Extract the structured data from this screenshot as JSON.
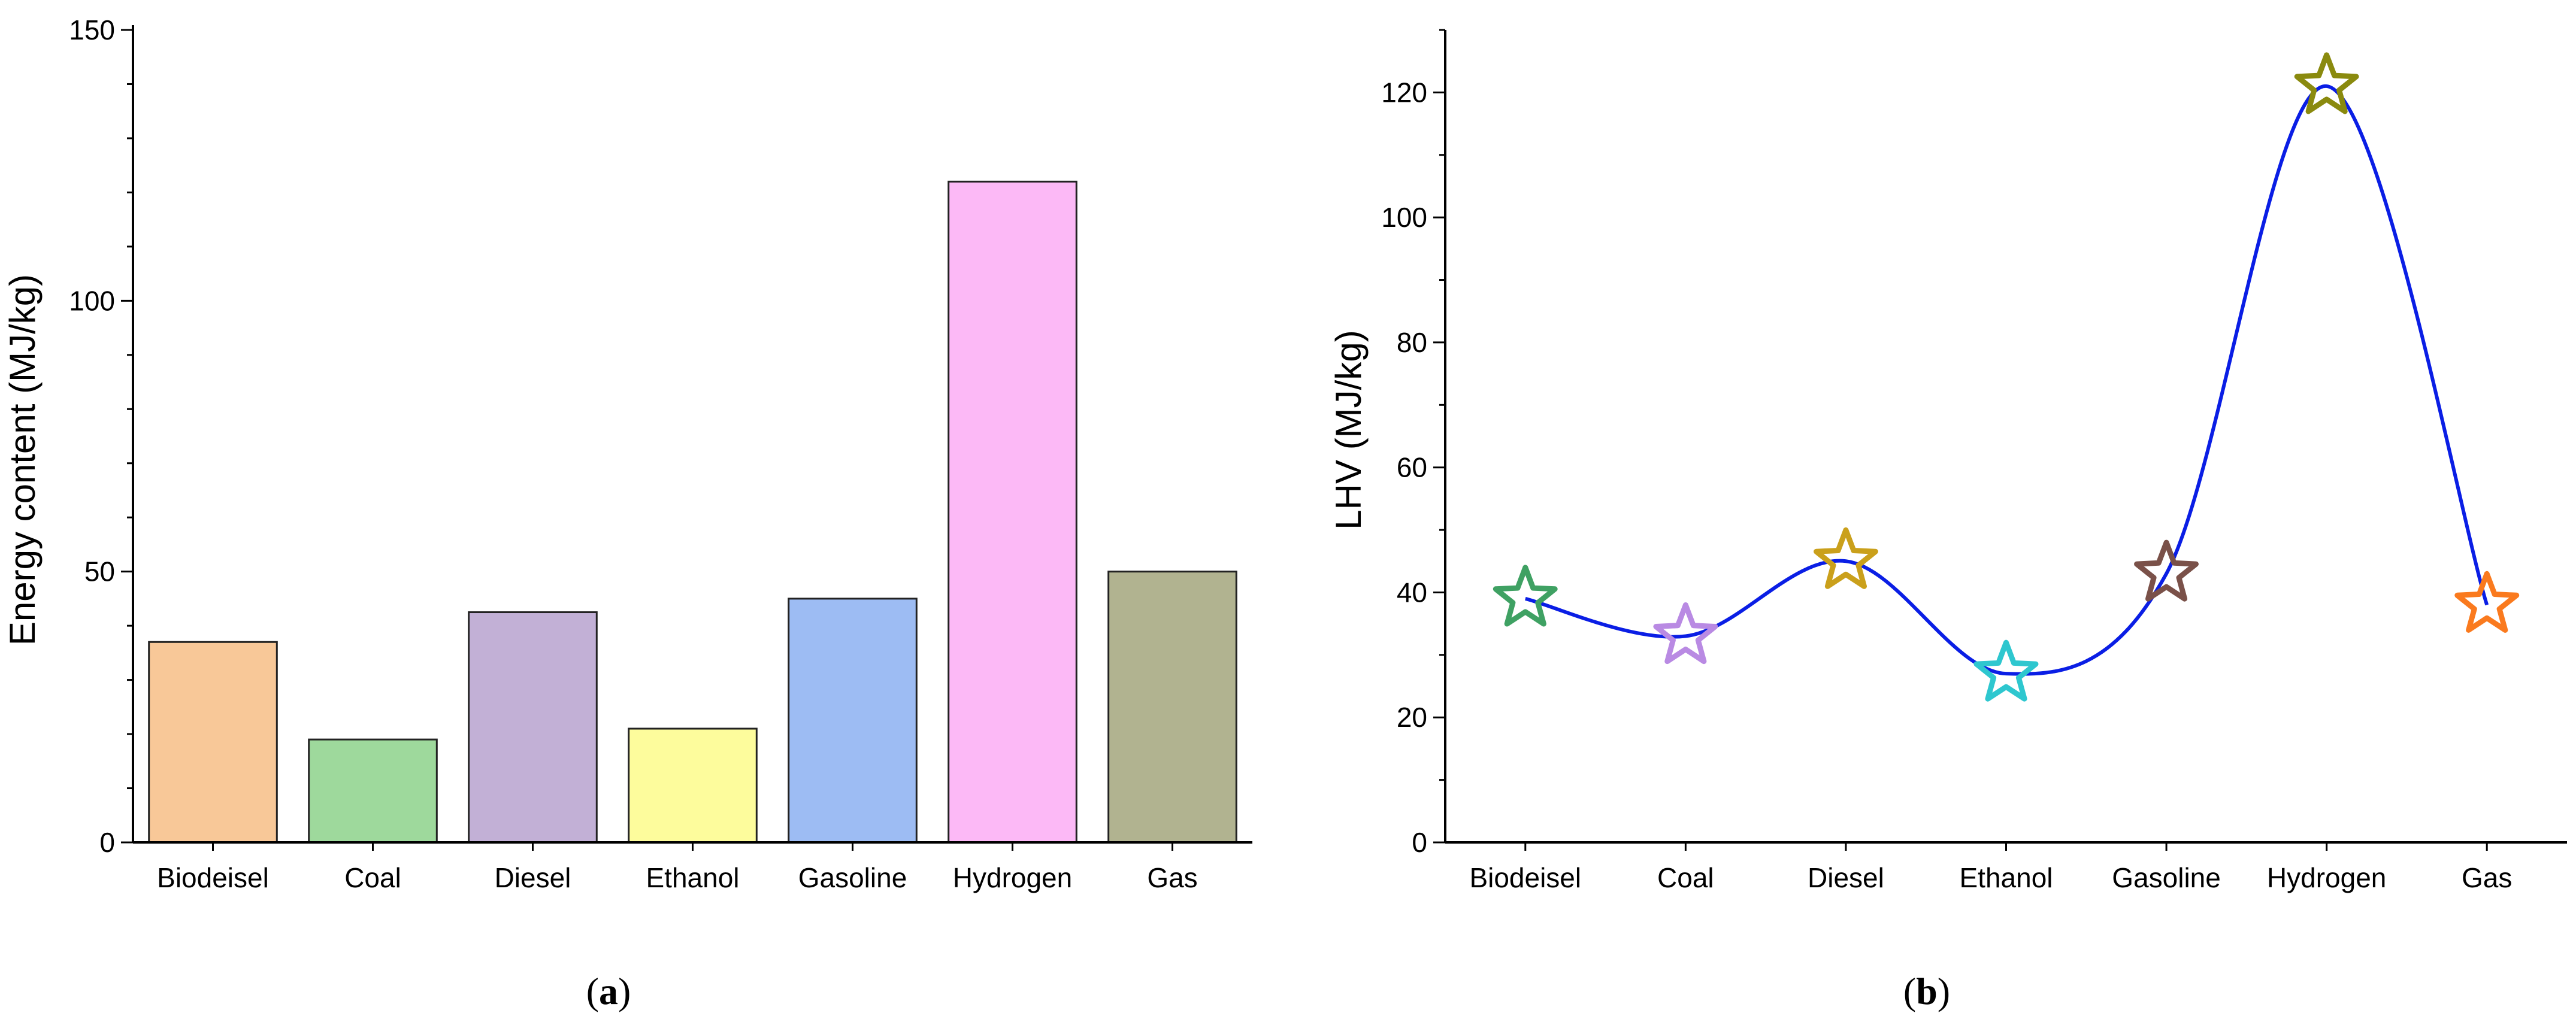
{
  "chart_data": [
    {
      "type": "bar",
      "categories": [
        "Biodeisel",
        "Coal",
        "Diesel",
        "Ethanol",
        "Gasoline",
        "Hydrogen",
        "Gas"
      ],
      "values": [
        37,
        19,
        42.5,
        21,
        45,
        122,
        50
      ],
      "colors": [
        "#f8c898",
        "#9ed99c",
        "#c2b0d6",
        "#fdfc9c",
        "#9dbcf3",
        "#fcb9f6",
        "#b1b390"
      ],
      "ylabel": "Energy content (MJ/kg)",
      "ylim": [
        0,
        150
      ],
      "yticks": [
        0,
        50,
        100,
        150
      ],
      "panel_label": {
        "open": "(",
        "letter": "a",
        "close": ")"
      }
    },
    {
      "type": "line",
      "categories": [
        "Biodeisel",
        "Coal",
        "Diesel",
        "Ethanol",
        "Gasoline",
        "Hydrogen",
        "Gas"
      ],
      "values": [
        39,
        33,
        45,
        27,
        43,
        121,
        38
      ],
      "marker_colors": [
        "#3fa163",
        "#b98ae3",
        "#caa01b",
        "#2ec7cf",
        "#7a5149",
        "#8a8a0e",
        "#fa7a1e"
      ],
      "line_color": "#0a1ee5",
      "marker": "star",
      "ylabel": "LHV (MJ/kg)",
      "ylim": [
        0,
        130
      ],
      "yticks": [
        0,
        20,
        40,
        60,
        80,
        100,
        120
      ],
      "panel_label": {
        "open": "(",
        "letter": "b",
        "close": ")"
      }
    }
  ]
}
